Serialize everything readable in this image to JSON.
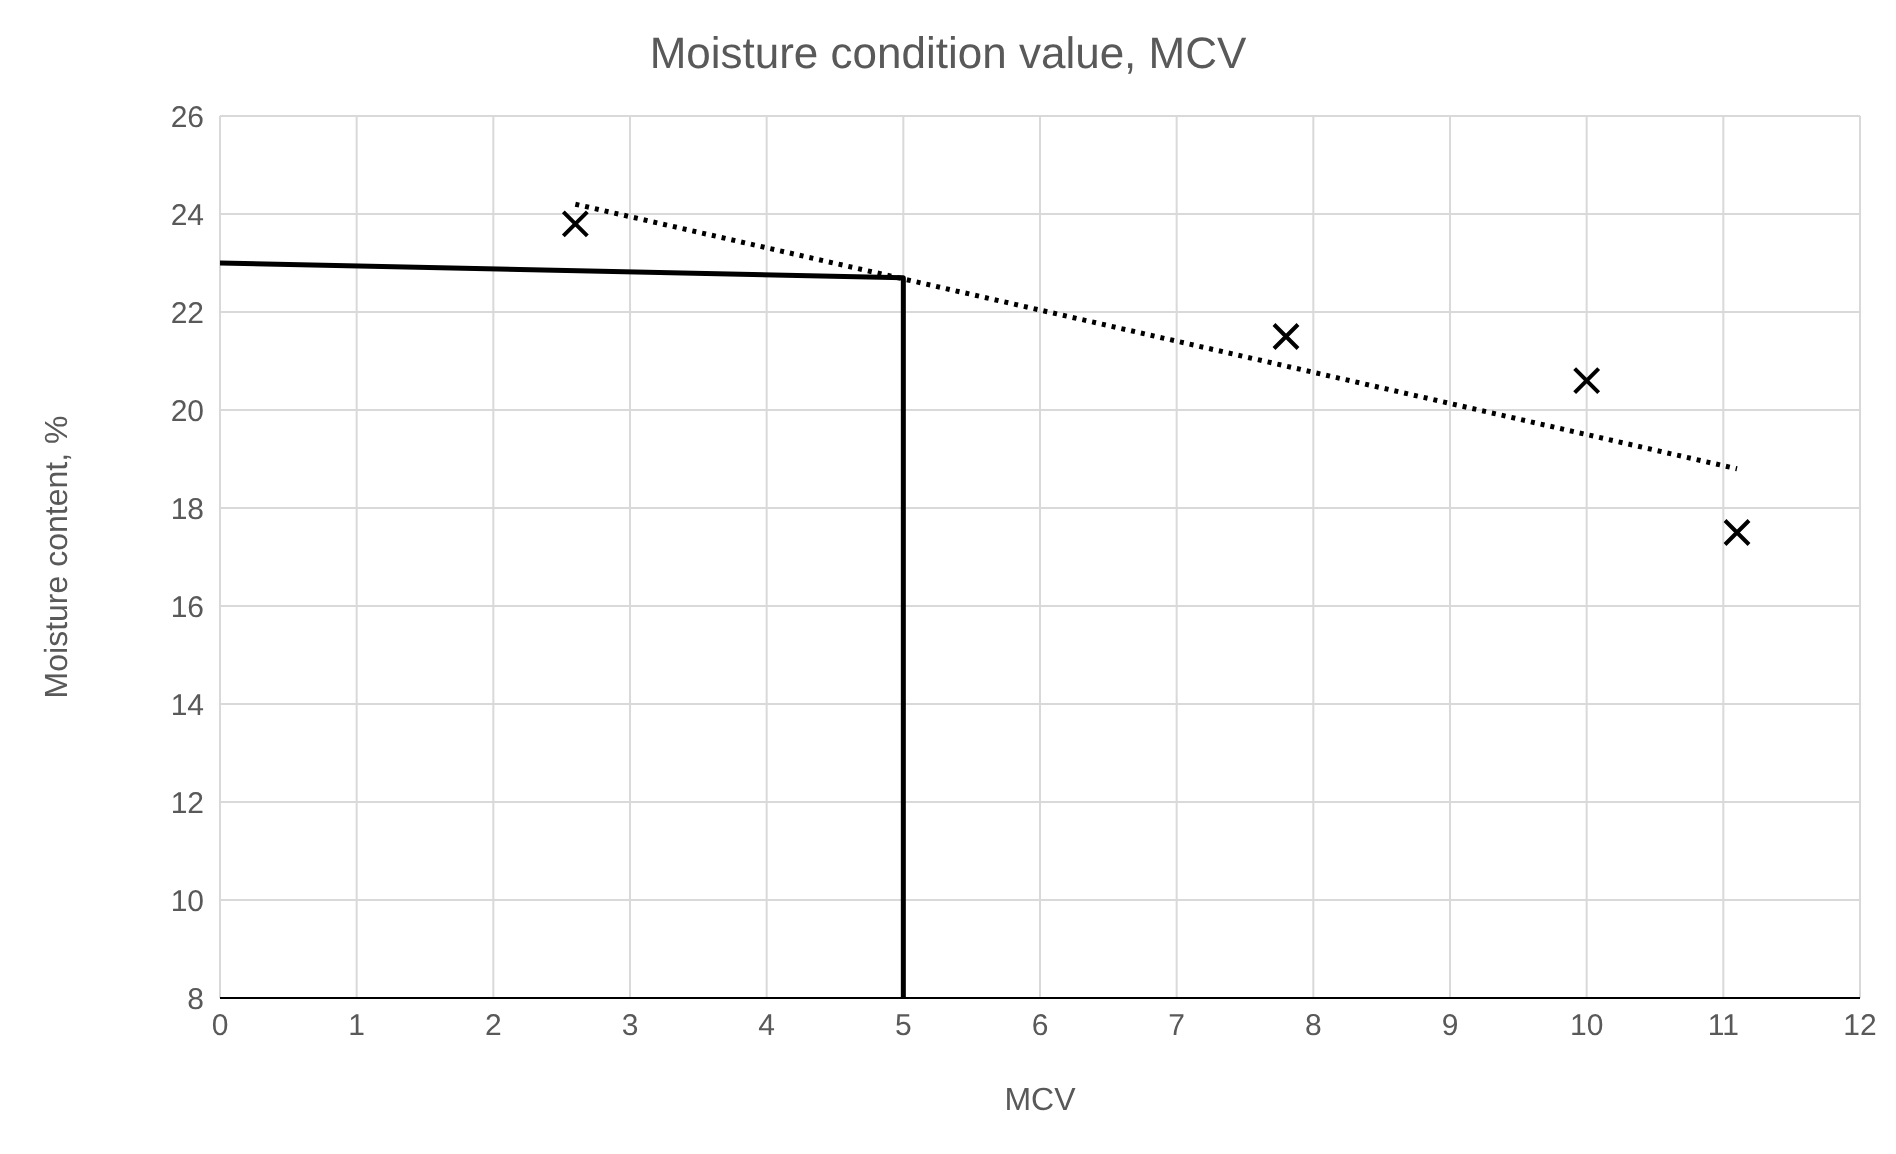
{
  "chart_data": {
    "type": "scatter",
    "title": "Moisture condition value, MCV",
    "xlabel": "MCV",
    "ylabel": "Moisture content, %",
    "xlim": [
      0,
      12
    ],
    "xticks": [
      0,
      1,
      2,
      3,
      4,
      5,
      6,
      7,
      8,
      9,
      10,
      11,
      12
    ],
    "ylim": [
      8,
      26
    ],
    "yticks": [
      8,
      10,
      12,
      14,
      16,
      18,
      20,
      22,
      24,
      26
    ],
    "grid": true,
    "series": [
      {
        "color": "#000000",
        "marker": "cross",
        "x": [
          2.6,
          7.8,
          10.0,
          11.1
        ],
        "values": [
          23.8,
          21.5,
          20.6,
          17.5
        ]
      },
      {
        "type": "line",
        "color": "#000000",
        "marker": "none",
        "line_style": "dotted",
        "x": [
          2.6,
          11.1
        ],
        "values": [
          24.2,
          18.8
        ]
      },
      {
        "type": "line",
        "color": "#000000",
        "marker": "none",
        "line_style": "solid",
        "x": [
          0,
          5,
          5
        ],
        "values": [
          23,
          22.7,
          8
        ]
      }
    ]
  }
}
